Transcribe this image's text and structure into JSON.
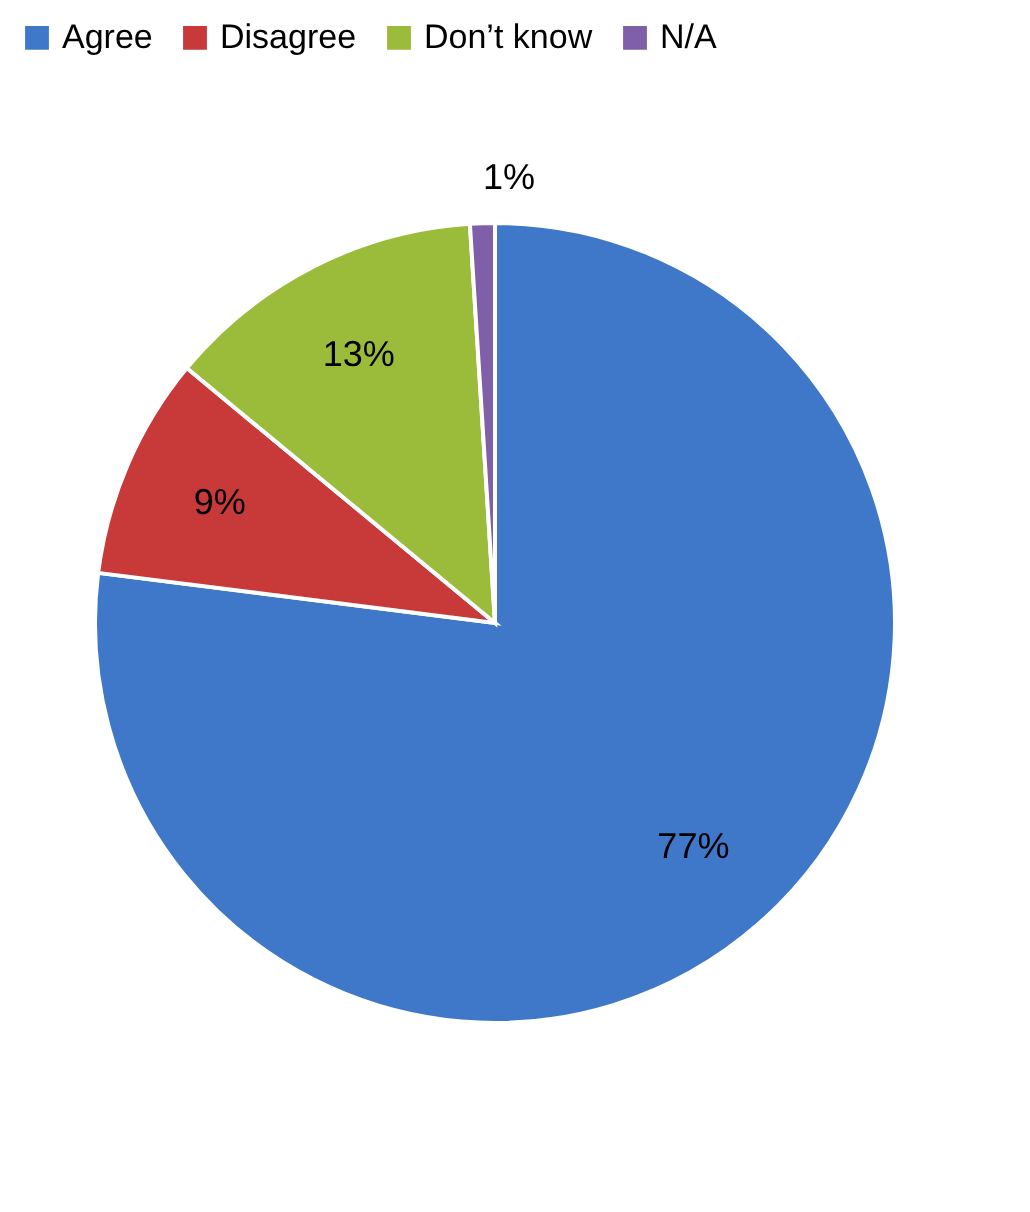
{
  "chart_data": {
    "type": "pie",
    "categories": [
      "Agree",
      "Disagree",
      "Don’t know",
      "N/A"
    ],
    "values": [
      77,
      9,
      13,
      1
    ],
    "colors": [
      "#3f78c9",
      "#c8393a",
      "#9bbb3b",
      "#7f5fa8"
    ],
    "value_labels": [
      "77%",
      "9%",
      "13%",
      "1%"
    ],
    "legend": "top"
  }
}
